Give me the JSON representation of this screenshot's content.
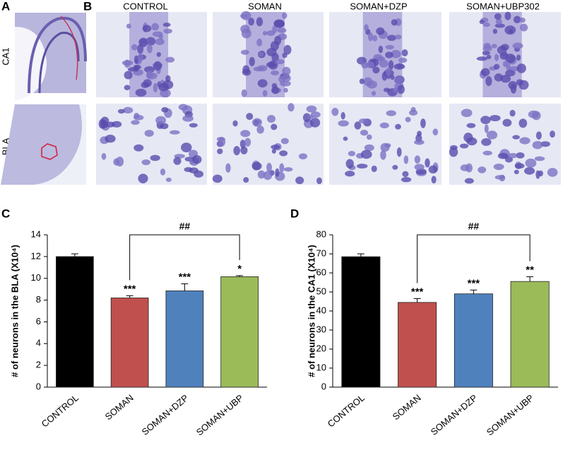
{
  "panel_labels": [
    "A",
    "B",
    "C",
    "D"
  ],
  "row_labels": [
    "CA1",
    "BLA"
  ],
  "column_labels": [
    "CONTROL",
    "SOMAN",
    "SOMAN+DZP",
    "SOMAN+UBP302"
  ],
  "chart_data": [
    {
      "type": "bar",
      "y_label": "# of neurons in the BLA (X10⁴)",
      "categories": [
        "CONTROL",
        "SOMAN",
        "SOMAN+DZP",
        "SOMAN+UBP"
      ],
      "values": [
        12.0,
        8.2,
        8.85,
        10.15
      ],
      "errors": [
        0.25,
        0.2,
        0.65,
        0.1
      ],
      "colors": [
        "#000000",
        "#c0504d",
        "#4f81bd",
        "#9bbb59"
      ],
      "significance": [
        null,
        "***",
        "***",
        "*"
      ],
      "bracket": {
        "label": "##",
        "from": "SOMAN",
        "to": "SOMAN+UBP"
      },
      "ylim": [
        0,
        14
      ],
      "yticks": [
        0,
        2,
        4,
        6,
        8,
        10,
        12,
        14
      ]
    },
    {
      "type": "bar",
      "y_label": "# of neurons in the CA1 (X10⁴)",
      "categories": [
        "CONTROL",
        "SOMAN",
        "SOMAN+DZP",
        "SOMAN+UBP"
      ],
      "values": [
        68.5,
        44.5,
        49,
        55.5
      ],
      "errors": [
        1.5,
        2,
        2,
        2.5
      ],
      "colors": [
        "#000000",
        "#c0504d",
        "#4f81bd",
        "#9bbb59"
      ],
      "significance": [
        null,
        "***",
        "***",
        "**"
      ],
      "bracket": {
        "label": "##",
        "from": "SOMAN",
        "to": "SOMAN+UBP"
      },
      "ylim": [
        0,
        80
      ],
      "yticks": [
        0,
        10,
        20,
        30,
        40,
        50,
        60,
        70,
        80
      ]
    }
  ]
}
